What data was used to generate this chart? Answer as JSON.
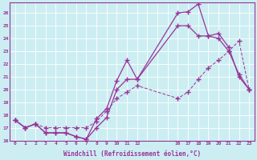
{
  "xlabel": "Windchill (Refroidissement éolien,°C)",
  "bg_color": "#cceef2",
  "line_color": "#993399",
  "grid_color": "#ffffff",
  "xlim": [
    -0.5,
    23.5
  ],
  "ylim": [
    16,
    26.8
  ],
  "yticks": [
    16,
    17,
    18,
    19,
    20,
    21,
    22,
    23,
    24,
    25,
    26
  ],
  "xtick_positions": [
    0,
    1,
    2,
    3,
    4,
    5,
    6,
    7,
    8,
    9,
    10,
    11,
    12,
    16,
    17,
    18,
    19,
    20,
    21,
    22,
    23
  ],
  "xtick_labels": [
    "0",
    "1",
    "2",
    "3",
    "4",
    "5",
    "6",
    "7",
    "8",
    "9",
    "10",
    "11",
    "12",
    "16",
    "17",
    "18",
    "19",
    "20",
    "21",
    "22",
    "23"
  ],
  "line1_x": [
    0,
    1,
    2,
    3,
    4,
    5,
    6,
    7,
    8,
    9,
    10,
    11,
    12,
    16,
    17,
    18,
    19,
    20,
    21,
    22,
    23
  ],
  "line1_y": [
    17.6,
    17.0,
    17.3,
    16.6,
    16.6,
    16.6,
    16.3,
    16.1,
    17.7,
    18.5,
    20.7,
    22.3,
    20.8,
    26.0,
    26.1,
    26.7,
    24.2,
    24.4,
    23.3,
    21.0,
    20.0
  ],
  "line2_x": [
    0,
    1,
    2,
    3,
    4,
    5,
    6,
    7,
    8,
    9,
    10,
    11,
    12,
    16,
    17,
    18,
    19,
    20,
    21,
    22,
    23
  ],
  "line2_y": [
    17.6,
    17.0,
    17.3,
    16.6,
    16.6,
    16.6,
    16.3,
    16.1,
    17.0,
    17.8,
    20.0,
    20.8,
    20.8,
    25.0,
    25.0,
    24.2,
    24.2,
    24.0,
    23.0,
    21.2,
    20.0
  ],
  "line3_x": [
    0,
    1,
    2,
    3,
    4,
    5,
    6,
    7,
    8,
    9,
    10,
    11,
    12,
    16,
    17,
    18,
    19,
    20,
    21,
    22,
    23
  ],
  "line3_y": [
    17.6,
    17.0,
    17.3,
    17.0,
    17.0,
    17.0,
    17.0,
    17.0,
    17.5,
    18.3,
    19.3,
    19.8,
    20.3,
    19.3,
    19.8,
    20.8,
    21.7,
    22.3,
    23.0,
    23.8,
    20.0
  ]
}
